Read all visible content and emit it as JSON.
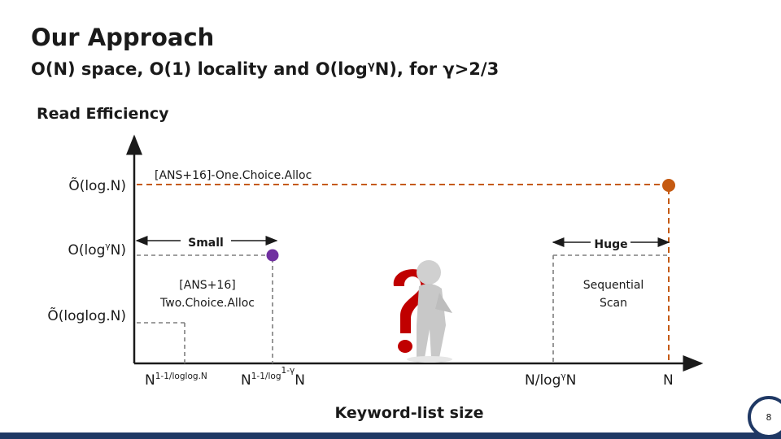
{
  "title": "Our Approach",
  "subtitle": [
    {
      "text": "O(N) space, O(1) locality and O(log"
    },
    {
      "text": "γ",
      "style": "superscript"
    },
    {
      "text": "N), for γ>2/3"
    }
  ],
  "y_axis_label": "Read Efficiency",
  "x_axis_label": "Keyword-list size",
  "y_labels": [
    [
      {
        "text": "Õ(log.N)"
      }
    ],
    [
      {
        "text": "O(log"
      },
      {
        "text": "γ",
        "style": "superscript"
      },
      {
        "text": "N)"
      }
    ],
    [
      {
        "text": "Õ(loglog.N)"
      }
    ]
  ],
  "x_labels": [
    [
      {
        "text": "N"
      },
      {
        "text": "1-1/loglog.N",
        "style": "superscript"
      }
    ],
    [
      {
        "text": "N"
      },
      {
        "text": "1-1/log",
        "style": "superscript"
      },
      {
        "text": "1-γ",
        "style": "superscript-2"
      },
      {
        "text": "N"
      }
    ],
    [
      {
        "text": "N/log"
      },
      {
        "text": "γ",
        "style": "superscript"
      },
      {
        "text": "N"
      }
    ],
    [
      {
        "text": "N"
      }
    ]
  ],
  "annotations": {
    "one_choice": "[ANS+16]-One.Choice.Alloc",
    "small": "Small",
    "huge": "Huge",
    "two_choice": [
      "[ANS+16]",
      "Two.Choice.Alloc"
    ],
    "sequential_scan": [
      "Sequential",
      "Scan"
    ]
  },
  "page_number": "8"
}
